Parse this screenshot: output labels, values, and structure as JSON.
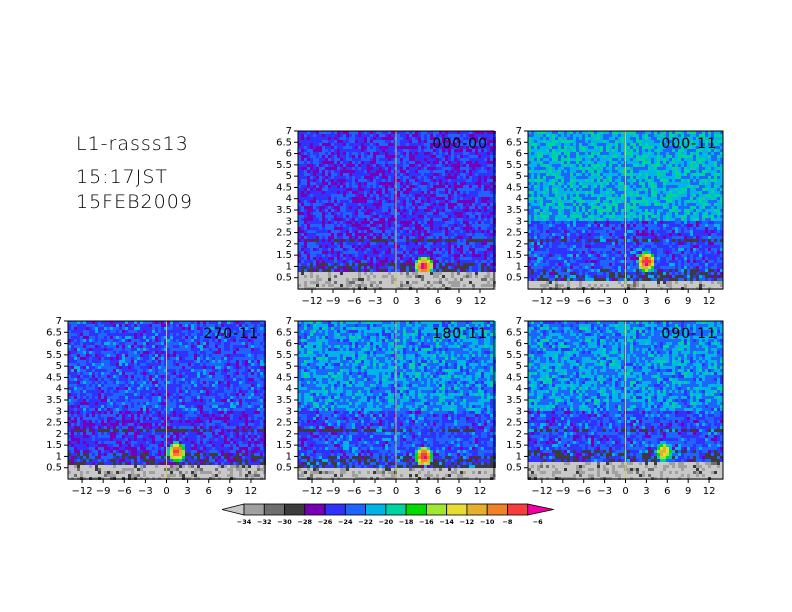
{
  "header": {
    "station": "L1-rasss13",
    "time": "15:17JST",
    "date": "15FEB2009"
  },
  "chart_data": [
    {
      "type": "heatmap",
      "panel_label": "000-00",
      "x_ticks": [
        -12,
        -9,
        -6,
        -3,
        0,
        3,
        6,
        9,
        12
      ],
      "y_ticks": [
        0.5,
        1,
        1.5,
        2,
        2.5,
        3,
        3.5,
        4,
        4.5,
        5,
        5.5,
        6,
        6.5,
        7
      ],
      "xlim": [
        -14,
        14
      ],
      "ylim": [
        0,
        7
      ],
      "baseline": -25,
      "upper_level": -25,
      "low_noise_top": 0.7,
      "hot_spot": {
        "x": 4,
        "y": 1.0,
        "peak": -6
      }
    },
    {
      "type": "heatmap",
      "panel_label": "000-11",
      "x_ticks": [
        -12,
        -9,
        -6,
        -3,
        0,
        3,
        6,
        9,
        12
      ],
      "y_ticks": [
        0.5,
        1,
        1.5,
        2,
        2.5,
        3,
        3.5,
        4,
        4.5,
        5,
        5.5,
        6,
        6.5,
        7
      ],
      "xlim": [
        -14,
        14
      ],
      "ylim": [
        0,
        7
      ],
      "baseline": -24,
      "upper_level": -21,
      "low_noise_top": 0.4,
      "hot_spot": {
        "x": 3,
        "y": 1.2,
        "peak": -6
      }
    },
    {
      "type": "heatmap",
      "panel_label": "270-11",
      "x_ticks": [
        -12,
        -9,
        -6,
        -3,
        0,
        3,
        6,
        9,
        12
      ],
      "y_ticks": [
        0.5,
        1,
        1.5,
        2,
        2.5,
        3,
        3.5,
        4,
        4.5,
        5,
        5.5,
        6,
        6.5,
        7
      ],
      "xlim": [
        -14,
        14
      ],
      "ylim": [
        0,
        7
      ],
      "baseline": -25,
      "upper_level": -24,
      "low_noise_top": 0.6,
      "hot_spot": {
        "x": 1.5,
        "y": 1.2,
        "peak": -7
      }
    },
    {
      "type": "heatmap",
      "panel_label": "180-11",
      "x_ticks": [
        -12,
        -9,
        -6,
        -3,
        0,
        3,
        6,
        9,
        12
      ],
      "y_ticks": [
        0.5,
        1,
        1.5,
        2,
        2.5,
        3,
        3.5,
        4,
        4.5,
        5,
        5.5,
        6,
        6.5,
        7
      ],
      "xlim": [
        -14,
        14
      ],
      "ylim": [
        0,
        7
      ],
      "baseline": -24,
      "upper_level": -22,
      "low_noise_top": 0.5,
      "hot_spot": {
        "x": 4,
        "y": 1.0,
        "peak": -6
      }
    },
    {
      "type": "heatmap",
      "panel_label": "090-11",
      "x_ticks": [
        -12,
        -9,
        -6,
        -3,
        0,
        3,
        6,
        9,
        12
      ],
      "y_ticks": [
        0.5,
        1,
        1.5,
        2,
        2.5,
        3,
        3.5,
        4,
        4.5,
        5,
        5.5,
        6,
        6.5,
        7
      ],
      "xlim": [
        -14,
        14
      ],
      "ylim": [
        0,
        7
      ],
      "baseline": -24,
      "upper_level": -22,
      "low_noise_top": 0.8,
      "hot_spot": {
        "x": 5.5,
        "y": 1.2,
        "peak": -10
      }
    }
  ],
  "colorbar": {
    "labels": [
      "-34",
      "-32",
      "-30",
      "-28",
      "-26",
      "-24",
      "-22",
      "-20",
      "-18",
      "-16",
      "-14",
      "-12",
      "-10",
      "-8",
      "-6"
    ],
    "colors": [
      "#a0a0a0",
      "#6e6e6e",
      "#3c3c3c",
      "#7800b4",
      "#3232ff",
      "#1e64ff",
      "#00b4e6",
      "#00d2a0",
      "#00dc00",
      "#a0e632",
      "#e6dc32",
      "#e6af2d",
      "#f08228",
      "#fa3c3c",
      "#f000a0"
    ],
    "under_color": "#c8c8c8"
  }
}
